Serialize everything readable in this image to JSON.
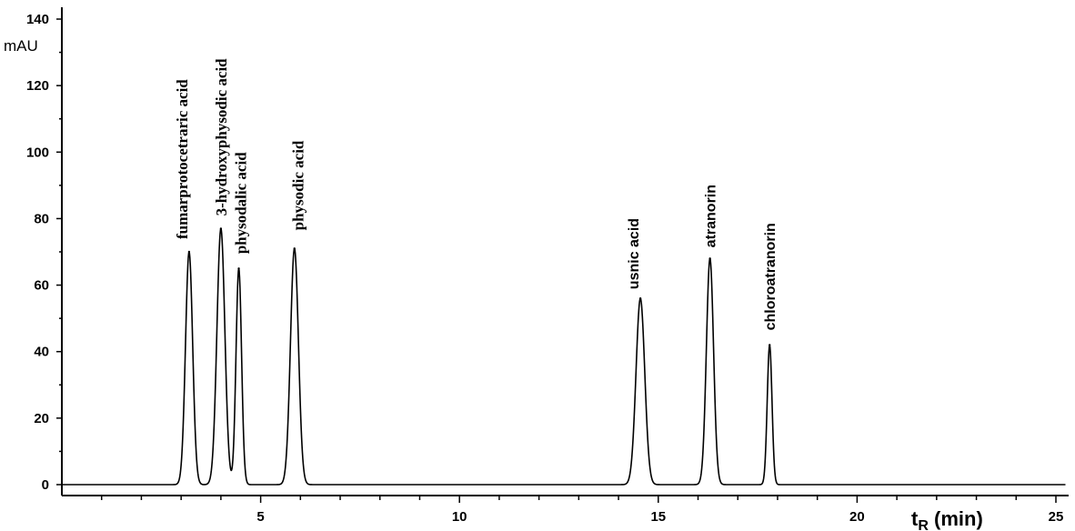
{
  "chart_data": {
    "type": "line",
    "title": "",
    "ylabel": "mAU",
    "xlabel": "t",
    "xlabel_subscript": "R",
    "xlabel_suffix": " (min)",
    "xlim": [
      0,
      25.2
    ],
    "ylim": [
      -3,
      143
    ],
    "xticks": [
      5,
      10,
      15,
      20,
      25
    ],
    "yticks": [
      0,
      20,
      40,
      60,
      80,
      100,
      120,
      140
    ],
    "grid": false,
    "baseline": 0,
    "peaks": [
      {
        "name": "fumarprotocetraric acid",
        "x": 3.2,
        "y": 70,
        "width": 0.09
      },
      {
        "name": "3-hydroxyphysodic acid",
        "x": 4.0,
        "y": 77,
        "width": 0.1
      },
      {
        "name": "physodalic acid",
        "x": 4.45,
        "y": 65,
        "width": 0.07
      },
      {
        "name": "physodic acid",
        "x": 5.85,
        "y": 71,
        "width": 0.1
      },
      {
        "name": "usnic acid",
        "x": 14.55,
        "y": 56,
        "width": 0.11
      },
      {
        "name": "atranorin",
        "x": 16.3,
        "y": 68,
        "width": 0.09
      },
      {
        "name": "chloroatranorin",
        "x": 17.8,
        "y": 42,
        "width": 0.06
      }
    ]
  }
}
